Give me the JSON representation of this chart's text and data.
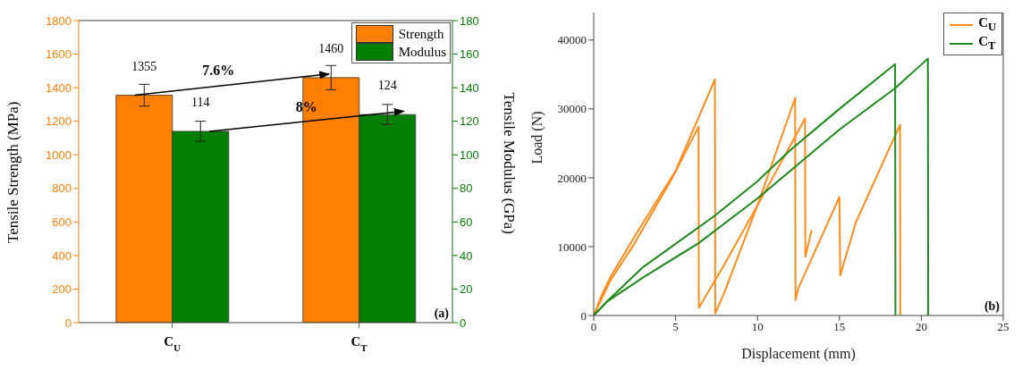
{
  "chart_data": [
    {
      "type": "bar",
      "categories": [
        "C$_{U}$",
        "C$_{T}$"
      ],
      "ylabel": "Tensile Strength (MPa)",
      "y2label": "Tensile Modulus (GPa)",
      "ylim": [
        0,
        1800
      ],
      "yticks": [
        0,
        200,
        400,
        600,
        800,
        1000,
        1200,
        1400,
        1600,
        1800
      ],
      "y2lim": [
        0,
        180
      ],
      "y2ticks": [
        0,
        20,
        40,
        60,
        80,
        100,
        120,
        140,
        160,
        180
      ],
      "legend": "top right",
      "data_labels": true,
      "annotations": [
        "7.6%",
        "8%",
        "(a)"
      ],
      "series": [
        {
          "name": "Strength",
          "color": "#ff7f00",
          "values": [
            1355,
            1460
          ],
          "errors": [
            65,
            72
          ]
        },
        {
          "name": "Modulus",
          "color": "#007f00",
          "values": [
            114,
            124
          ],
          "errors": [
            6,
            6
          ],
          "axis": "y2"
        }
      ]
    },
    {
      "type": "line",
      "xlabel": "Displacement (mm)",
      "ylabel": "Load (N)",
      "xlim": [
        0,
        25
      ],
      "xticks": [
        0,
        5,
        10,
        15,
        20,
        25
      ],
      "ylim": [
        0,
        44000
      ],
      "yticks": [
        0,
        10000,
        20000,
        30000,
        40000
      ],
      "legend": "top right",
      "annotations": [
        "(b)"
      ],
      "series": [
        {
          "name": "C$_{U}$",
          "color": "#ff8c1a",
          "x": [
            0,
            0.5,
            1,
            2.5,
            5,
            7.4,
            7.42,
            8,
            10,
            12.3,
            12.32,
            12.5,
            15,
            15.05,
            16,
            18.7,
            18.72
          ],
          "values": [
            0,
            3000,
            5500,
            11500,
            21000,
            34300,
            300,
            3500,
            16000,
            31600,
            2200,
            4000,
            17200,
            5800,
            13500,
            27700,
            0
          ]
        },
        {
          "color": "#ff8c1a",
          "x": [
            0,
            0.5,
            1,
            2.5,
            4.8,
            6.4,
            6.42,
            8,
            10,
            12.9,
            12.92,
            13.3
          ],
          "values": [
            0,
            2500,
            5000,
            10500,
            20000,
            27400,
            1100,
            7500,
            16000,
            28600,
            8500,
            12400
          ]
        },
        {
          "name": "C$_{T}$",
          "color": "#1a8a1a",
          "x": [
            0,
            0.8,
            3,
            7.4,
            10,
            12,
            15,
            18.4,
            18.42
          ],
          "values": [
            0,
            2000,
            7000,
            14500,
            19500,
            24000,
            30000,
            36500,
            0
          ]
        },
        {
          "color": "#1a8a1a",
          "x": [
            0,
            0.8,
            3,
            6.4,
            10,
            15,
            18.4,
            20.4,
            20.42
          ],
          "values": [
            0,
            2000,
            5500,
            10500,
            17000,
            27000,
            33000,
            37300,
            0
          ]
        }
      ]
    }
  ]
}
